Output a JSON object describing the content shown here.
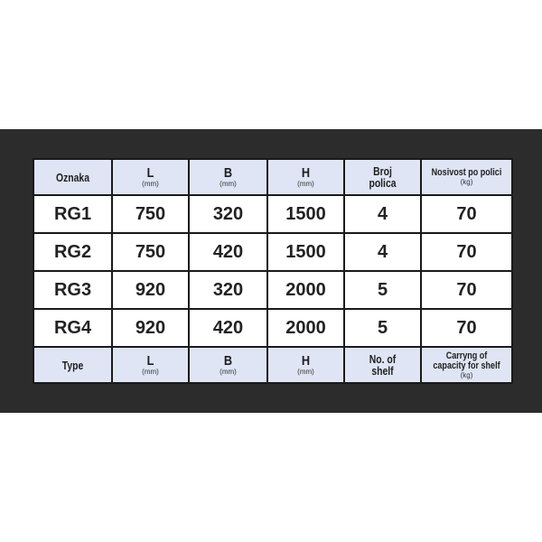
{
  "header": {
    "cols": [
      {
        "label": "Oznaka",
        "unit": ""
      },
      {
        "label": "L",
        "unit": "(mm)"
      },
      {
        "label": "B",
        "unit": "(mm)"
      },
      {
        "label": "H",
        "unit": "(mm)"
      },
      {
        "label": "Broj",
        "label2": "polica"
      },
      {
        "label": "Nosivost po polici",
        "unit": "(kg)"
      }
    ]
  },
  "rows": [
    [
      "RG1",
      "750",
      "320",
      "1500",
      "4",
      "70"
    ],
    [
      "RG2",
      "750",
      "420",
      "1500",
      "4",
      "70"
    ],
    [
      "RG3",
      "920",
      "320",
      "2000",
      "5",
      "70"
    ],
    [
      "RG4",
      "920",
      "420",
      "2000",
      "5",
      "70"
    ]
  ],
  "footer": {
    "cols": [
      {
        "label": "Type"
      },
      {
        "label": "L",
        "unit": "(mm)"
      },
      {
        "label": "B",
        "unit": "(mm)"
      },
      {
        "label": "H",
        "unit": "(mm)"
      },
      {
        "label": "No. of",
        "label2": "shelf"
      },
      {
        "label": "Carryng of",
        "label2": "capacity for shelf",
        "unit": "(kg)"
      }
    ]
  },
  "colors": {
    "background_band": "#2c2c2c",
    "header_bg": "#dfe5f4",
    "border": "#1a1a1a"
  }
}
